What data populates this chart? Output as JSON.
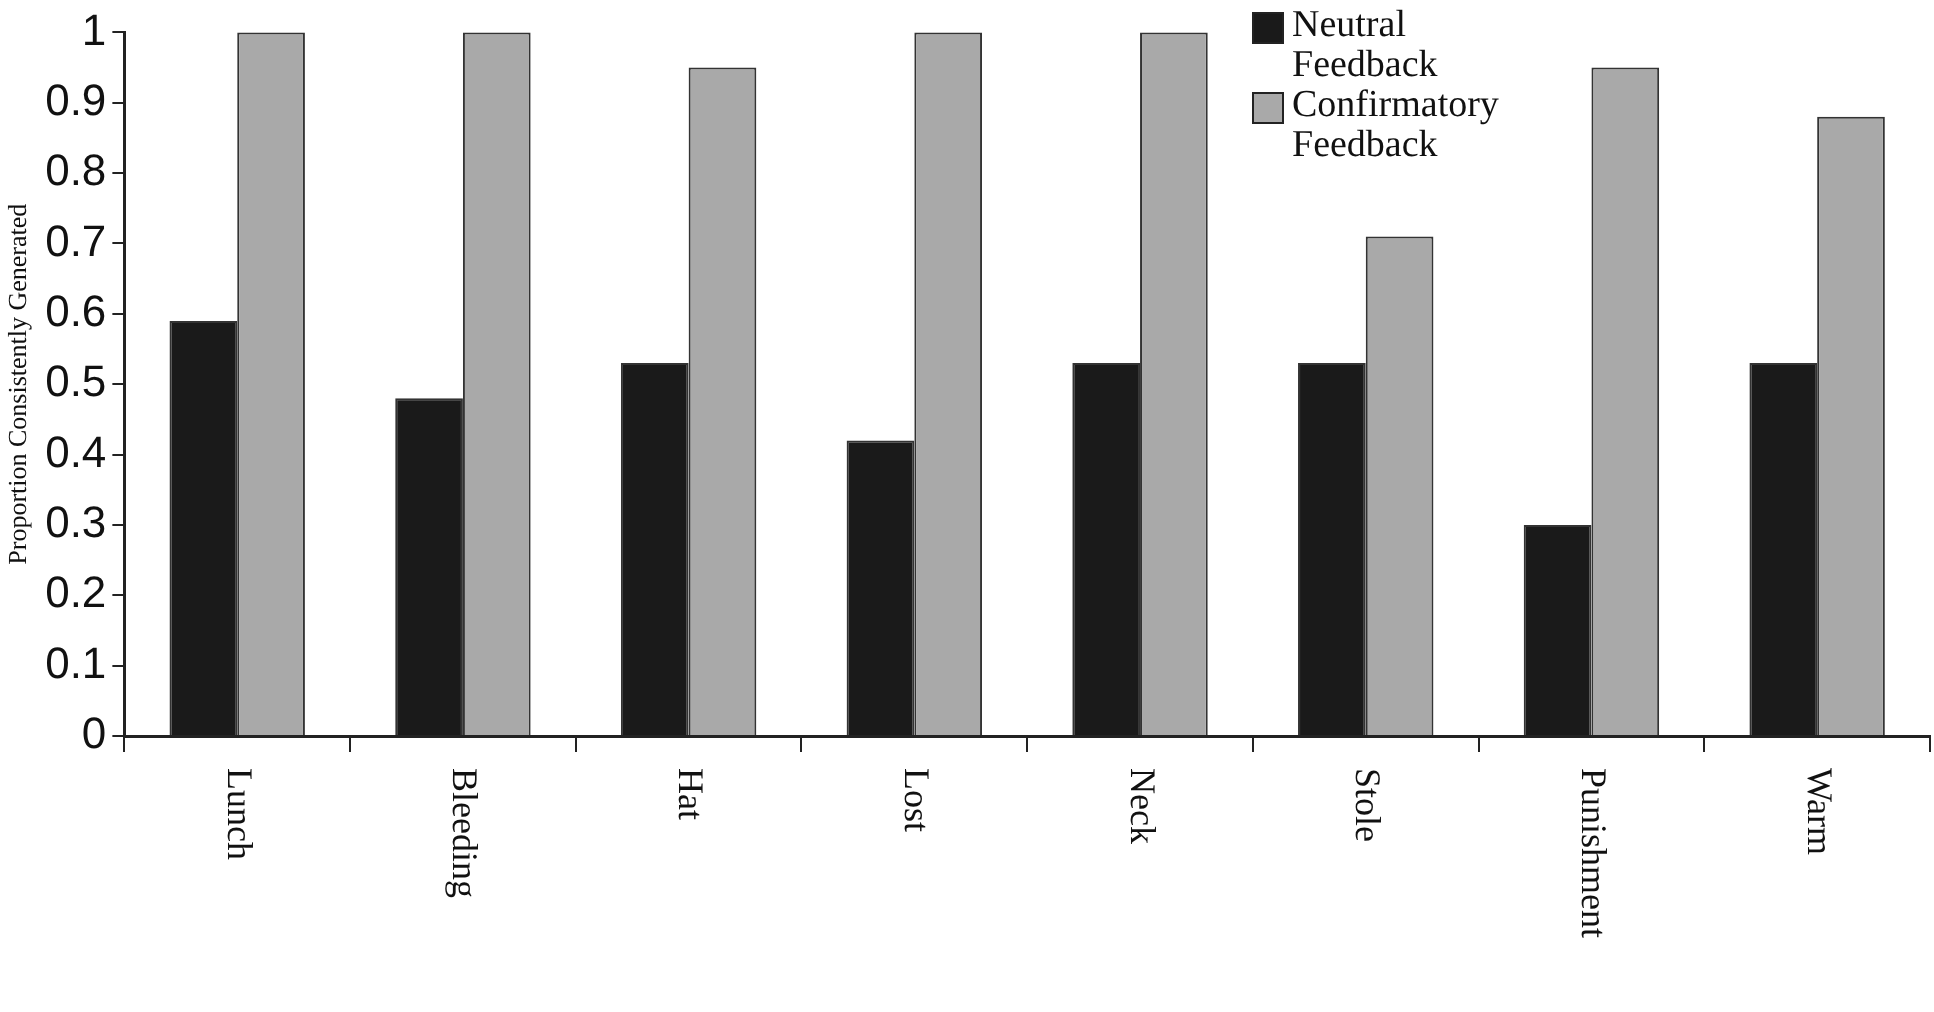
{
  "chart_data": {
    "type": "bar",
    "ylabel": "Proportion Consistently Generated",
    "categories": [
      "Lunch",
      "Bleeding",
      "Hat",
      "Lost",
      "Neck",
      "Stole",
      "Punishment",
      "Warm"
    ],
    "series": [
      {
        "name": "Neutral Feedback",
        "color": "#1a1a1a",
        "values": [
          0.59,
          0.48,
          0.53,
          0.42,
          0.53,
          0.53,
          0.3,
          0.53
        ]
      },
      {
        "name": "Confirmatory Feedback",
        "color": "#a9a9a9",
        "values": [
          1,
          1,
          0.95,
          1,
          1,
          0.71,
          0.95,
          0.88
        ]
      }
    ],
    "ylim": [
      0,
      1
    ],
    "yticks": [
      0,
      0.1,
      0.2,
      0.3,
      0.4,
      0.5,
      0.6,
      0.7,
      0.8,
      0.9,
      1
    ],
    "legend": "top right"
  }
}
